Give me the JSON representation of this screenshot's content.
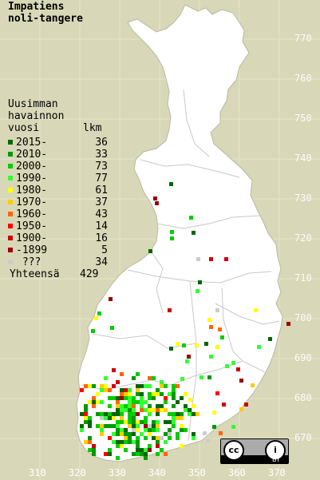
{
  "title_line1": "Impatiens",
  "title_line2": "noli-tangere",
  "legend": {
    "head1": "Uusimman",
    "head2": "havainnon",
    "head3": "vuosi",
    "count_header": "lkm",
    "items": [
      {
        "label": "2015-",
        "count": "36",
        "color": "#006600"
      },
      {
        "label": "2010-",
        "count": "33",
        "color": "#009900"
      },
      {
        "label": "2000-",
        "count": "73",
        "color": "#00cc00"
      },
      {
        "label": "1990-",
        "count": "77",
        "color": "#33ff33"
      },
      {
        "label": "1980-",
        "count": "61",
        "color": "#ffff00"
      },
      {
        "label": "1970-",
        "count": "37",
        "color": "#ffcc00"
      },
      {
        "label": "1960-",
        "count": "43",
        "color": "#ff6600"
      },
      {
        "label": "1950-",
        "count": "14",
        "color": "#ff0000"
      },
      {
        "label": "1900-",
        "count": "16",
        "color": "#cc0000"
      },
      {
        "label": "-1899",
        "count": "5",
        "color": "#990000"
      },
      {
        "label": " ???",
        "count": "34",
        "color": "#cccccc"
      }
    ],
    "total_label": "Yhteensä",
    "total_count": "429"
  },
  "grid_y_labels": [
    "770",
    "760",
    "750",
    "740",
    "730",
    "720",
    "710",
    "700",
    "690",
    "680",
    "670"
  ],
  "grid_x_labels": [
    "310",
    "320",
    "330",
    "340",
    "350",
    "360",
    "370"
  ],
  "license": {
    "cc": "cc",
    "info": "i",
    "by": "BY"
  },
  "colors": {
    "background": "#d8d8b8",
    "land": "#ffffff",
    "borders": "#c8c8c8"
  }
}
